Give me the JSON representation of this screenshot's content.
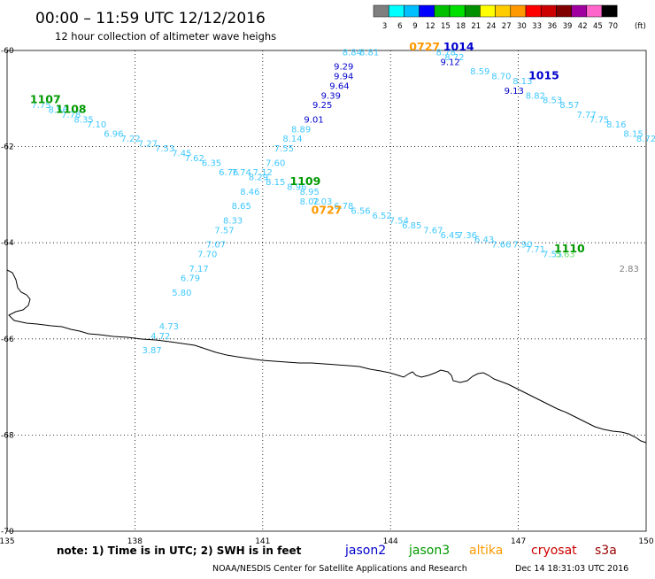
{
  "title": "00:00 – 11:59 UTC 12/12/2016",
  "subtitle": "12 hour collection of altimeter wave heighs",
  "note": "note: 1) Time is in UTC; 2) SWH is in feet",
  "credit": "NOAA/NESDIS Center for Satellite Applications and Research",
  "timestamp": "Dec 14 18:31:03 UTC 2016",
  "colorbar": {
    "labels": [
      "3",
      "6",
      "9",
      "12",
      "15",
      "18",
      "21",
      "24",
      "27",
      "30",
      "33",
      "36",
      "39",
      "42",
      "45",
      "70"
    ],
    "unit": "(ft)",
    "colors": [
      "#7f7f7f",
      "#00ffff",
      "#00bfff",
      "#0000ff",
      "#00c000",
      "#00e000",
      "#009000",
      "#ffff00",
      "#ffcc00",
      "#ff9900",
      "#ff0000",
      "#cc0000",
      "#800000",
      "#a000a0",
      "#ff66cc",
      "#000000"
    ]
  },
  "legend": [
    {
      "name": "jason2",
      "color": "#0000cc"
    },
    {
      "name": "jason3",
      "color": "#009900"
    },
    {
      "name": "altika",
      "color": "#ff9900"
    },
    {
      "name": "cryosat",
      "color": "#cc0000"
    },
    {
      "name": "s3a",
      "color": "#990000"
    }
  ],
  "chart_data": {
    "type": "scatter",
    "title": "00:00 – 11:59 UTC 12/12/2016",
    "subtitle": "12 hour collection of altimeter wave heighs",
    "xlim": [
      135,
      150
    ],
    "ylim": [
      -70,
      -60
    ],
    "xticks": [
      "135",
      "138",
      "141",
      "144",
      "147",
      "150"
    ],
    "yticks": [
      "-60",
      "-62",
      "-64",
      "-66",
      "-68",
      "-70"
    ],
    "grid": "dotted",
    "observations": [
      {
        "x": 135.8,
        "y": -61.2,
        "v": "7.75",
        "c": "#40c8ff"
      },
      {
        "x": 136.2,
        "y": -61.3,
        "v": "8.56",
        "c": "#40c8ff"
      },
      {
        "x": 136.5,
        "y": -61.4,
        "v": "7.78",
        "c": "#40c8ff"
      },
      {
        "x": 136.8,
        "y": -61.5,
        "v": "8.35",
        "c": "#40c8ff"
      },
      {
        "x": 137.1,
        "y": -61.6,
        "v": "7.10",
        "c": "#40c8ff"
      },
      {
        "x": 137.5,
        "y": -61.8,
        "v": "6.96",
        "c": "#40c8ff"
      },
      {
        "x": 137.9,
        "y": -61.9,
        "v": "7.22",
        "c": "#40c8ff"
      },
      {
        "x": 138.3,
        "y": -62.0,
        "v": "7.27",
        "c": "#40c8ff"
      },
      {
        "x": 138.7,
        "y": -62.1,
        "v": "7.53",
        "c": "#40c8ff"
      },
      {
        "x": 139.1,
        "y": -62.2,
        "v": "7.45",
        "c": "#40c8ff"
      },
      {
        "x": 139.4,
        "y": -62.3,
        "v": "7.62",
        "c": "#40c8ff"
      },
      {
        "x": 139.8,
        "y": -62.4,
        "v": "6.35",
        "c": "#40c8ff"
      },
      {
        "x": 140.2,
        "y": -62.6,
        "v": "6.76",
        "c": "#40c8ff"
      },
      {
        "x": 140.5,
        "y": -62.6,
        "v": "7.74",
        "c": "#40c8ff"
      },
      {
        "x": 140.9,
        "y": -62.7,
        "v": "8.29",
        "c": "#40c8ff"
      },
      {
        "x": 141.3,
        "y": -62.8,
        "v": "8.15",
        "c": "#40c8ff"
      },
      {
        "x": 141.8,
        "y": -62.9,
        "v": "8.96",
        "c": "#40c8ff"
      },
      {
        "x": 142.1,
        "y": -63.0,
        "v": "8.95",
        "c": "#40c8ff"
      },
      {
        "x": 142.1,
        "y": -63.2,
        "v": "8.02",
        "c": "#40c8ff"
      },
      {
        "x": 142.4,
        "y": -63.2,
        "v": "7.03",
        "c": "#40c8ff"
      },
      {
        "x": 142.9,
        "y": -63.3,
        "v": "6.78",
        "c": "#40c8ff"
      },
      {
        "x": 143.3,
        "y": -63.4,
        "v": "6.56",
        "c": "#40c8ff"
      },
      {
        "x": 143.8,
        "y": -63.5,
        "v": "6.52",
        "c": "#40c8ff"
      },
      {
        "x": 144.2,
        "y": -63.6,
        "v": "7.54",
        "c": "#40c8ff"
      },
      {
        "x": 144.5,
        "y": -63.7,
        "v": "6.85",
        "c": "#40c8ff"
      },
      {
        "x": 145.0,
        "y": -63.8,
        "v": "7.67",
        "c": "#40c8ff"
      },
      {
        "x": 145.4,
        "y": -63.9,
        "v": "6.45",
        "c": "#40c8ff"
      },
      {
        "x": 145.8,
        "y": -63.9,
        "v": "7.36",
        "c": "#40c8ff"
      },
      {
        "x": 146.2,
        "y": -64.0,
        "v": "6.43",
        "c": "#40c8ff"
      },
      {
        "x": 146.6,
        "y": -64.1,
        "v": "7.66",
        "c": "#40c8ff"
      },
      {
        "x": 147.1,
        "y": -64.1,
        "v": "7.90",
        "c": "#40c8ff"
      },
      {
        "x": 147.4,
        "y": -64.2,
        "v": "7.71",
        "c": "#40c8ff"
      },
      {
        "x": 147.8,
        "y": -64.3,
        "v": "7.55",
        "c": "#40c8ff"
      },
      {
        "x": 148.1,
        "y": -64.3,
        "v": "5.63",
        "c": "#66dd66"
      },
      {
        "x": 149.6,
        "y": -64.6,
        "v": "2.83",
        "c": "#7f7f7f"
      },
      {
        "x": 143.1,
        "y": -60.1,
        "v": "8.84",
        "c": "#40c8ff"
      },
      {
        "x": 143.5,
        "y": -60.1,
        "v": "8.81",
        "c": "#40c8ff"
      },
      {
        "x": 145.5,
        "y": -60.2,
        "v": "8.72",
        "c": "#40c8ff"
      },
      {
        "x": 145.4,
        "y": -60.3,
        "v": "9.12",
        "c": "#0000cc"
      },
      {
        "x": 145.3,
        "y": -60.1,
        "v": "8.78",
        "c": "#40c8ff"
      },
      {
        "x": 142.9,
        "y": -60.4,
        "v": "9.29",
        "c": "#0000cc"
      },
      {
        "x": 142.9,
        "y": -60.6,
        "v": "9.94",
        "c": "#0000cc"
      },
      {
        "x": 142.8,
        "y": -60.8,
        "v": "9.64",
        "c": "#0000cc"
      },
      {
        "x": 142.6,
        "y": -61.0,
        "v": "9.39",
        "c": "#0000cc"
      },
      {
        "x": 142.4,
        "y": -61.2,
        "v": "9.25",
        "c": "#0000cc"
      },
      {
        "x": 142.2,
        "y": -61.5,
        "v": "9.01",
        "c": "#0000cc"
      },
      {
        "x": 141.9,
        "y": -61.7,
        "v": "8.89",
        "c": "#40c8ff"
      },
      {
        "x": 141.7,
        "y": -61.9,
        "v": "8.14",
        "c": "#40c8ff"
      },
      {
        "x": 141.5,
        "y": -62.1,
        "v": "7.55",
        "c": "#40c8ff"
      },
      {
        "x": 141.3,
        "y": -62.4,
        "v": "7.60",
        "c": "#40c8ff"
      },
      {
        "x": 141.0,
        "y": -62.6,
        "v": "7.12",
        "c": "#40c8ff"
      },
      {
        "x": 140.7,
        "y": -63.0,
        "v": "8.46",
        "c": "#40c8ff"
      },
      {
        "x": 140.5,
        "y": -63.3,
        "v": "8.65",
        "c": "#40c8ff"
      },
      {
        "x": 140.3,
        "y": -63.6,
        "v": "8.33",
        "c": "#40c8ff"
      },
      {
        "x": 140.1,
        "y": -63.8,
        "v": "7.57",
        "c": "#40c8ff"
      },
      {
        "x": 139.9,
        "y": -64.1,
        "v": "7.07",
        "c": "#40c8ff"
      },
      {
        "x": 139.7,
        "y": -64.3,
        "v": "7.70",
        "c": "#40c8ff"
      },
      {
        "x": 139.5,
        "y": -64.6,
        "v": "7.17",
        "c": "#40c8ff"
      },
      {
        "x": 139.3,
        "y": -64.8,
        "v": "6.79",
        "c": "#40c8ff"
      },
      {
        "x": 139.1,
        "y": -65.1,
        "v": "5.80",
        "c": "#40c8ff"
      },
      {
        "x": 138.8,
        "y": -65.8,
        "v": "4.73",
        "c": "#40c8ff"
      },
      {
        "x": 138.6,
        "y": -66.0,
        "v": "4.72",
        "c": "#40c8ff"
      },
      {
        "x": 138.4,
        "y": -66.3,
        "v": "3.87",
        "c": "#40c8ff"
      },
      {
        "x": 146.1,
        "y": -60.5,
        "v": "8.59",
        "c": "#40c8ff"
      },
      {
        "x": 146.6,
        "y": -60.6,
        "v": "8.70",
        "c": "#40c8ff"
      },
      {
        "x": 147.1,
        "y": -60.7,
        "v": "8.13",
        "c": "#40c8ff"
      },
      {
        "x": 146.9,
        "y": -60.9,
        "v": "9.13",
        "c": "#0000cc"
      },
      {
        "x": 147.4,
        "y": -61.0,
        "v": "8.82",
        "c": "#40c8ff"
      },
      {
        "x": 147.8,
        "y": -61.1,
        "v": "8.53",
        "c": "#40c8ff"
      },
      {
        "x": 148.2,
        "y": -61.2,
        "v": "8.57",
        "c": "#40c8ff"
      },
      {
        "x": 148.6,
        "y": -61.4,
        "v": "7.77",
        "c": "#40c8ff"
      },
      {
        "x": 148.9,
        "y": -61.5,
        "v": "7.75",
        "c": "#40c8ff"
      },
      {
        "x": 149.3,
        "y": -61.6,
        "v": "8.16",
        "c": "#40c8ff"
      },
      {
        "x": 149.7,
        "y": -61.8,
        "v": "8.15",
        "c": "#40c8ff"
      },
      {
        "x": 150.0,
        "y": -61.9,
        "v": "8.72",
        "c": "#40c8ff"
      }
    ],
    "pass_labels": [
      {
        "x": 135.9,
        "y": -61.1,
        "v": "1107",
        "c": "#009900"
      },
      {
        "x": 136.5,
        "y": -61.3,
        "v": "1108",
        "c": "#009900"
      },
      {
        "x": 142.0,
        "y": -62.8,
        "v": "1109",
        "c": "#009900"
      },
      {
        "x": 142.5,
        "y": -63.4,
        "v": "0727",
        "c": "#ff9900"
      },
      {
        "x": 144.8,
        "y": -60.0,
        "v": "0727",
        "c": "#ff9900"
      },
      {
        "x": 145.6,
        "y": -60.0,
        "v": "1014",
        "c": "#0000cc"
      },
      {
        "x": 147.6,
        "y": -60.6,
        "v": "1015",
        "c": "#0000cc"
      },
      {
        "x": 148.2,
        "y": -64.2,
        "v": "1110",
        "c": "#009900"
      }
    ]
  }
}
